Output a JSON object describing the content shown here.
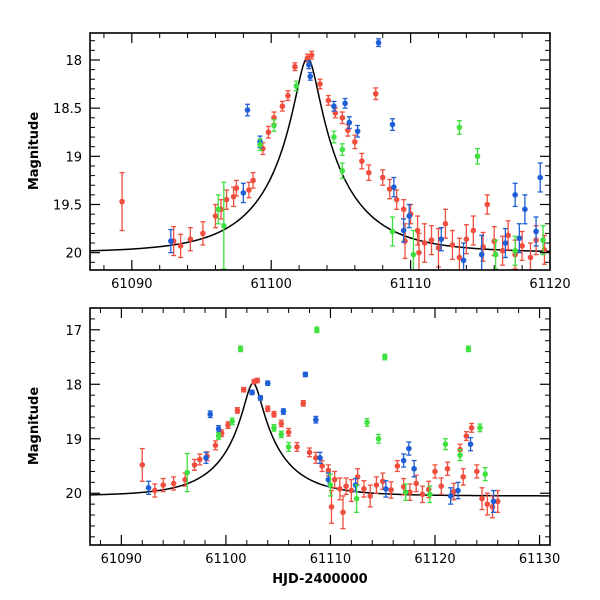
{
  "chart_data": [
    {
      "type": "scatter",
      "title": "",
      "xlabel": "",
      "ylabel": "Magnitude",
      "xlim": [
        61087,
        61120
      ],
      "ylim": [
        20.18,
        17.72
      ],
      "y_inverted": true,
      "x_ticks": [
        61090,
        61100,
        61110,
        61120
      ],
      "x_tick_labels": [
        "61090",
        "61100",
        "61110",
        "61120"
      ],
      "y_ticks": [
        18,
        18.5,
        19,
        19.5,
        20
      ],
      "y_tick_labels": [
        "18",
        "18.5",
        "19",
        "19.5",
        "20"
      ],
      "model_curve": {
        "peak_time": 61102.6,
        "peak_mag": 17.98,
        "baseline_mag": 20.0,
        "u0": 0.14,
        "tE": 5.5,
        "color": "#000000"
      },
      "series": [
        {
          "name": "red",
          "color": "#f04e3e",
          "points": [
            [
              61089.3,
              19.47,
              0.3
            ],
            [
              61093.0,
              19.88,
              0.15
            ],
            [
              61093.5,
              19.93,
              0.12
            ],
            [
              61094.2,
              19.86,
              0.12
            ],
            [
              61095.1,
              19.8,
              0.12
            ],
            [
              61096.0,
              19.62,
              0.12
            ],
            [
              61096.4,
              19.55,
              0.1
            ],
            [
              61096.8,
              19.45,
              0.1
            ],
            [
              61097.3,
              19.42,
              0.1
            ],
            [
              61097.5,
              19.33,
              0.08
            ],
            [
              61098.4,
              19.35,
              0.08
            ],
            [
              61098.7,
              19.25,
              0.08
            ],
            [
              61099.4,
              18.92,
              0.06
            ],
            [
              61099.8,
              18.75,
              0.06
            ],
            [
              61100.2,
              18.6,
              0.06
            ],
            [
              61100.8,
              18.48,
              0.05
            ],
            [
              61101.2,
              18.37,
              0.05
            ],
            [
              61101.7,
              18.07,
              0.04
            ],
            [
              61102.6,
              17.98,
              0.04
            ],
            [
              61102.9,
              17.95,
              0.04
            ],
            [
              61103.5,
              18.25,
              0.05
            ],
            [
              61104.1,
              18.42,
              0.05
            ],
            [
              61104.6,
              18.55,
              0.05
            ],
            [
              61105.1,
              18.6,
              0.06
            ],
            [
              61105.5,
              18.73,
              0.06
            ],
            [
              61106.0,
              18.85,
              0.07
            ],
            [
              61106.5,
              19.05,
              0.08
            ],
            [
              61107.0,
              19.17,
              0.08
            ],
            [
              61107.5,
              18.35,
              0.06
            ],
            [
              61108.0,
              19.22,
              0.08
            ],
            [
              61108.5,
              19.34,
              0.1
            ],
            [
              61109.0,
              19.45,
              0.1
            ],
            [
              61109.5,
              19.55,
              0.1
            ],
            [
              61110.0,
              19.6,
              0.1
            ],
            [
              61110.5,
              19.77,
              0.15
            ],
            [
              61111.0,
              19.9,
              0.2
            ],
            [
              61111.5,
              19.87,
              0.15
            ],
            [
              61112.0,
              19.95,
              0.2
            ],
            [
              61112.5,
              19.7,
              0.15
            ],
            [
              61113.0,
              19.92,
              0.15
            ],
            [
              61113.5,
              20.05,
              0.2
            ],
            [
              61114.0,
              19.86,
              0.15
            ],
            [
              61114.5,
              19.77,
              0.15
            ],
            [
              61115.2,
              19.94,
              0.15
            ],
            [
              61115.5,
              19.5,
              0.1
            ],
            [
              61116.0,
              19.88,
              0.15
            ],
            [
              61116.6,
              19.98,
              0.15
            ],
            [
              61117.0,
              19.82,
              0.15
            ],
            [
              61117.5,
              20.02,
              0.15
            ],
            [
              61118.0,
              19.93,
              0.15
            ],
            [
              61118.6,
              20.05,
              0.15
            ],
            [
              61119.0,
              19.87,
              0.15
            ],
            [
              61119.6,
              19.97,
              0.15
            ],
            [
              61109.6,
              19.88,
              0.18
            ],
            [
              61110.6,
              20.0,
              0.2
            ]
          ]
        },
        {
          "name": "blue",
          "color": "#1f5fd6",
          "points": [
            [
              61092.8,
              19.88,
              0.12
            ],
            [
              61098.0,
              19.38,
              0.1
            ],
            [
              61098.3,
              18.52,
              0.06
            ],
            [
              61099.2,
              18.85,
              0.06
            ],
            [
              61102.8,
              18.17,
              0.04
            ],
            [
              61102.7,
              18.05,
              0.04
            ],
            [
              61104.5,
              18.48,
              0.05
            ],
            [
              61105.3,
              18.45,
              0.05
            ],
            [
              61105.6,
              18.65,
              0.06
            ],
            [
              61106.2,
              18.74,
              0.06
            ],
            [
              61107.7,
              17.82,
              0.04
            ],
            [
              61108.7,
              18.67,
              0.06
            ],
            [
              61108.8,
              19.32,
              0.1
            ],
            [
              61109.5,
              19.77,
              0.12
            ],
            [
              61109.9,
              19.62,
              0.12
            ],
            [
              61112.2,
              19.86,
              0.12
            ],
            [
              61115.1,
              20.02,
              0.2
            ],
            [
              61116.8,
              19.9,
              0.15
            ],
            [
              61117.5,
              19.4,
              0.12
            ],
            [
              61117.8,
              19.85,
              0.15
            ],
            [
              61118.2,
              19.55,
              0.15
            ],
            [
              61119.0,
              19.78,
              0.15
            ],
            [
              61119.3,
              19.22,
              0.15
            ],
            [
              61113.8,
              20.08,
              0.18
            ]
          ]
        },
        {
          "name": "green",
          "color": "#3fe03f",
          "points": [
            [
              61096.6,
              19.72,
              0.45
            ],
            [
              61096.2,
              19.55,
              0.15
            ],
            [
              61099.2,
              18.88,
              0.06
            ],
            [
              61100.2,
              18.68,
              0.06
            ],
            [
              61101.8,
              18.27,
              0.05
            ],
            [
              61104.5,
              18.8,
              0.06
            ],
            [
              61105.1,
              18.93,
              0.06
            ],
            [
              61105.1,
              19.15,
              0.08
            ],
            [
              61108.7,
              19.78,
              0.15
            ],
            [
              61110.2,
              20.02,
              0.25
            ],
            [
              61113.5,
              18.7,
              0.07
            ],
            [
              61114.8,
              19.0,
              0.08
            ],
            [
              61117.5,
              19.98,
              0.15
            ],
            [
              61119.5,
              19.87,
              0.15
            ],
            [
              61120.1,
              19.1,
              0.1
            ],
            [
              61116.1,
              20.02,
              0.15
            ]
          ]
        }
      ]
    },
    {
      "type": "scatter",
      "title": "",
      "xlabel": "HJD-2400000",
      "ylabel": "Magnitude",
      "xlim": [
        61087,
        61131
      ],
      "ylim": [
        20.95,
        16.6
      ],
      "y_inverted": true,
      "x_ticks": [
        61090,
        61100,
        61110,
        61120,
        61130
      ],
      "x_tick_labels": [
        "61090",
        "61100",
        "61110",
        "61120",
        "61130"
      ],
      "y_ticks": [
        17,
        18,
        19,
        20
      ],
      "y_tick_labels": [
        "17",
        "18",
        "19",
        "20"
      ],
      "model_curve": {
        "peak_time": 61102.6,
        "peak_mag": 17.98,
        "baseline_mag": 20.05,
        "u0": 0.14,
        "tE": 5.5,
        "color": "#000000"
      },
      "series": [
        {
          "name": "red",
          "color": "#f04e3e",
          "points": [
            [
              61092.0,
              19.48,
              0.3
            ],
            [
              61093.2,
              19.95,
              0.12
            ],
            [
              61094.0,
              19.85,
              0.12
            ],
            [
              61095.0,
              19.82,
              0.12
            ],
            [
              61096.1,
              19.75,
              0.12
            ],
            [
              61097.0,
              19.48,
              0.1
            ],
            [
              61097.5,
              19.38,
              0.1
            ],
            [
              61098.2,
              19.32,
              0.08
            ],
            [
              61099.0,
              19.12,
              0.08
            ],
            [
              61099.6,
              18.9,
              0.06
            ],
            [
              61100.2,
              18.75,
              0.06
            ],
            [
              61101.1,
              18.48,
              0.05
            ],
            [
              61101.7,
              18.1,
              0.04
            ],
            [
              61102.7,
              17.95,
              0.04
            ],
            [
              61103.0,
              17.93,
              0.04
            ],
            [
              61104.0,
              18.45,
              0.05
            ],
            [
              61104.6,
              18.55,
              0.05
            ],
            [
              61105.3,
              18.72,
              0.06
            ],
            [
              61106.0,
              18.88,
              0.07
            ],
            [
              61106.8,
              19.15,
              0.08
            ],
            [
              61107.4,
              18.35,
              0.05
            ],
            [
              61108.0,
              19.25,
              0.08
            ],
            [
              61108.6,
              19.35,
              0.1
            ],
            [
              61109.2,
              19.5,
              0.1
            ],
            [
              61109.8,
              19.58,
              0.1
            ],
            [
              61110.4,
              19.75,
              0.15
            ],
            [
              61110.9,
              19.92,
              0.2
            ],
            [
              61111.5,
              19.87,
              0.15
            ],
            [
              61112.0,
              19.95,
              0.2
            ],
            [
              61112.6,
              19.7,
              0.15
            ],
            [
              61113.2,
              19.92,
              0.15
            ],
            [
              61113.8,
              20.05,
              0.2
            ],
            [
              61114.4,
              19.85,
              0.15
            ],
            [
              61115.0,
              19.78,
              0.15
            ],
            [
              61115.8,
              19.94,
              0.15
            ],
            [
              61116.4,
              19.5,
              0.1
            ],
            [
              61117.0,
              19.88,
              0.15
            ],
            [
              61117.6,
              19.98,
              0.15
            ],
            [
              61118.2,
              19.82,
              0.15
            ],
            [
              61118.8,
              20.02,
              0.15
            ],
            [
              61119.4,
              19.93,
              0.15
            ],
            [
              61120.0,
              19.6,
              0.12
            ],
            [
              61120.6,
              19.87,
              0.15
            ],
            [
              61121.2,
              19.55,
              0.12
            ],
            [
              61121.8,
              19.97,
              0.15
            ],
            [
              61122.4,
              19.2,
              0.1
            ],
            [
              61123.0,
              18.95,
              0.08
            ],
            [
              61123.5,
              18.8,
              0.08
            ],
            [
              61124.0,
              19.6,
              0.12
            ],
            [
              61124.5,
              20.1,
              0.2
            ],
            [
              61125.0,
              20.2,
              0.2
            ],
            [
              61125.5,
              20.25,
              0.2
            ],
            [
              61126.0,
              20.15,
              0.2
            ],
            [
              61122.7,
              19.7,
              0.15
            ],
            [
              61110.1,
              20.25,
              0.3
            ],
            [
              61111.2,
              20.35,
              0.3
            ]
          ]
        },
        {
          "name": "blue",
          "color": "#1f5fd6",
          "points": [
            [
              61092.6,
              19.9,
              0.12
            ],
            [
              61098.1,
              19.35,
              0.1
            ],
            [
              61098.5,
              18.55,
              0.06
            ],
            [
              61099.3,
              18.82,
              0.06
            ],
            [
              61102.5,
              18.15,
              0.04
            ],
            [
              61103.3,
              18.25,
              0.04
            ],
            [
              61104.0,
              17.98,
              0.04
            ],
            [
              61105.5,
              18.5,
              0.05
            ],
            [
              61107.6,
              17.82,
              0.04
            ],
            [
              61108.6,
              18.65,
              0.06
            ],
            [
              61109.0,
              19.35,
              0.1
            ],
            [
              61109.8,
              19.75,
              0.12
            ],
            [
              61112.4,
              19.85,
              0.12
            ],
            [
              61115.3,
              19.92,
              0.15
            ],
            [
              61117.0,
              19.4,
              0.12
            ],
            [
              61117.5,
              19.18,
              0.12
            ],
            [
              61118.0,
              19.55,
              0.15
            ],
            [
              61121.5,
              20.05,
              0.15
            ],
            [
              61122.2,
              19.95,
              0.15
            ],
            [
              61123.4,
              19.1,
              0.12
            ],
            [
              61125.6,
              20.15,
              0.2
            ]
          ]
        },
        {
          "name": "green",
          "color": "#3fe03f",
          "points": [
            [
              61096.3,
              19.62,
              0.35
            ],
            [
              61099.3,
              18.95,
              0.06
            ],
            [
              61100.6,
              18.68,
              0.06
            ],
            [
              61101.4,
              17.35,
              0.05
            ],
            [
              61104.6,
              18.8,
              0.06
            ],
            [
              61105.3,
              18.92,
              0.06
            ],
            [
              61106.0,
              19.15,
              0.08
            ],
            [
              61108.7,
              17.0,
              0.05
            ],
            [
              61110.0,
              19.85,
              0.2
            ],
            [
              61112.5,
              20.1,
              0.25
            ],
            [
              61113.5,
              18.7,
              0.07
            ],
            [
              61114.6,
              19.0,
              0.08
            ],
            [
              61115.2,
              17.5,
              0.05
            ],
            [
              61117.2,
              19.98,
              0.15
            ],
            [
              61119.5,
              20.02,
              0.15
            ],
            [
              61121.0,
              19.1,
              0.1
            ],
            [
              61122.4,
              19.3,
              0.1
            ],
            [
              61123.2,
              17.35,
              0.05
            ],
            [
              61124.3,
              18.8,
              0.07
            ],
            [
              61124.8,
              19.65,
              0.12
            ]
          ]
        }
      ]
    }
  ]
}
